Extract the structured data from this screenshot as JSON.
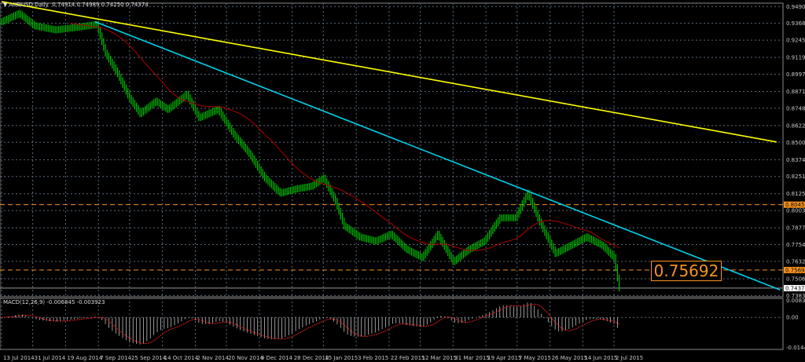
{
  "header": {
    "symbol_title": "AUDUSD,Daily",
    "ohlc": "0.74914 0.74989 0.74250 0.74374"
  },
  "macd_header": {
    "title": "MACD(12,26,9) -0.006845 -0.003923"
  },
  "price_marker_label": "0.75692",
  "colors": {
    "background": "#000000",
    "bars": "#00c000",
    "ma": "#b00000",
    "trend_long": "#ffff00",
    "trend_short": "#00d0e8",
    "level": "#f7931e",
    "grid": "#5a6a7a"
  },
  "chart_data": [
    {
      "type": "line",
      "title": "AUDUSD,Daily",
      "y_ticks": [
        "0.94905",
        "0.93680",
        "0.92455",
        "0.91195",
        "0.89970",
        "0.88710",
        "0.87485",
        "0.86225",
        "0.85000",
        "0.83740",
        "0.82515",
        "0.81255",
        "0.80030",
        "0.78770",
        "0.77545",
        "0.76320",
        "0.75060",
        "0.73835"
      ],
      "ylim": [
        0.7374,
        0.9515
      ],
      "x_ticks": [
        "13 Jul 2014",
        "31 Jul 2014",
        "19 Aug 2014",
        "7 Sep 2014",
        "25 Sep 2014",
        "14 Oct 2014",
        "2 Nov 2014",
        "20 Nov 2014",
        "9 Dec 2014",
        "28 Dec 2014",
        "15 Jan 2015",
        "3 Feb 2015",
        "22 Feb 2015",
        "12 Mar 2015",
        "31 Mar 2015",
        "19 Apr 2015",
        "7 May 2015",
        "26 May 2015",
        "14 Jun 2015",
        "2 Jul 2015"
      ],
      "x_tick_dates": [
        "2014-07-13",
        "2014-07-31",
        "2014-08-19",
        "2014-09-07",
        "2014-09-25",
        "2014-10-14",
        "2014-11-02",
        "2014-11-20",
        "2014-12-09",
        "2014-12-28",
        "2015-01-15",
        "2015-02-03",
        "2015-02-22",
        "2015-03-12",
        "2015-03-31",
        "2015-04-19",
        "2015-05-07",
        "2015-05-26",
        "2015-06-14",
        "2015-07-02"
      ],
      "price": {
        "dates": [
          "2014-07-13",
          "2014-07-23",
          "2014-08-01",
          "2014-08-13",
          "2014-08-26",
          "2014-09-06",
          "2014-09-11",
          "2014-09-18",
          "2014-09-25",
          "2014-10-01",
          "2014-10-10",
          "2014-10-17",
          "2014-10-28",
          "2014-11-04",
          "2014-11-15",
          "2014-11-24",
          "2014-12-03",
          "2014-12-12",
          "2014-12-21",
          "2014-12-30",
          "2015-01-08",
          "2015-01-15",
          "2015-01-22",
          "2015-01-27",
          "2015-02-05",
          "2015-02-14",
          "2015-02-23",
          "2015-03-04",
          "2015-03-13",
          "2015-03-22",
          "2015-03-31",
          "2015-04-09",
          "2015-04-18",
          "2015-04-27",
          "2015-05-06",
          "2015-05-13",
          "2015-05-20",
          "2015-05-29",
          "2015-06-07",
          "2015-06-16",
          "2015-06-25",
          "2015-07-02",
          "2015-07-05"
        ],
        "close": [
          0.938,
          0.944,
          0.935,
          0.932,
          0.934,
          0.936,
          0.915,
          0.9,
          0.882,
          0.871,
          0.88,
          0.874,
          0.885,
          0.868,
          0.874,
          0.856,
          0.842,
          0.824,
          0.813,
          0.816,
          0.818,
          0.824,
          0.807,
          0.789,
          0.781,
          0.778,
          0.783,
          0.772,
          0.766,
          0.783,
          0.763,
          0.772,
          0.778,
          0.795,
          0.795,
          0.813,
          0.792,
          0.769,
          0.775,
          0.781,
          0.775,
          0.766,
          0.74374
        ]
      },
      "trendlines": [
        {
          "color": "yellow",
          "from": {
            "date": "2014-07-13",
            "price": 0.9526
          },
          "to": {
            "date": "2015-10-04",
            "price": 0.8503
          }
        },
        {
          "color": "cyan",
          "from": {
            "date": "2014-09-05",
            "price": 0.938
          },
          "to": {
            "date": "2015-10-06",
            "price": 0.7425
          }
        }
      ],
      "levels": [
        {
          "price": 0.80457,
          "label": "0.80457",
          "style": "dashed-orange"
        },
        {
          "price": 0.75692,
          "label": "0.75692",
          "style": "dashed-orange"
        },
        {
          "price": 0.74374,
          "label": "0.74374",
          "style": "current-gray"
        }
      ],
      "moving_average": {
        "color": "red"
      }
    },
    {
      "type": "bar",
      "title": "MACD(12,26,9) -0.006845 -0.003923",
      "y_ticks": [
        "0.008313",
        "0.00",
        "-0.014483"
      ],
      "ylim": [
        -0.0155,
        0.0092
      ]
    }
  ]
}
